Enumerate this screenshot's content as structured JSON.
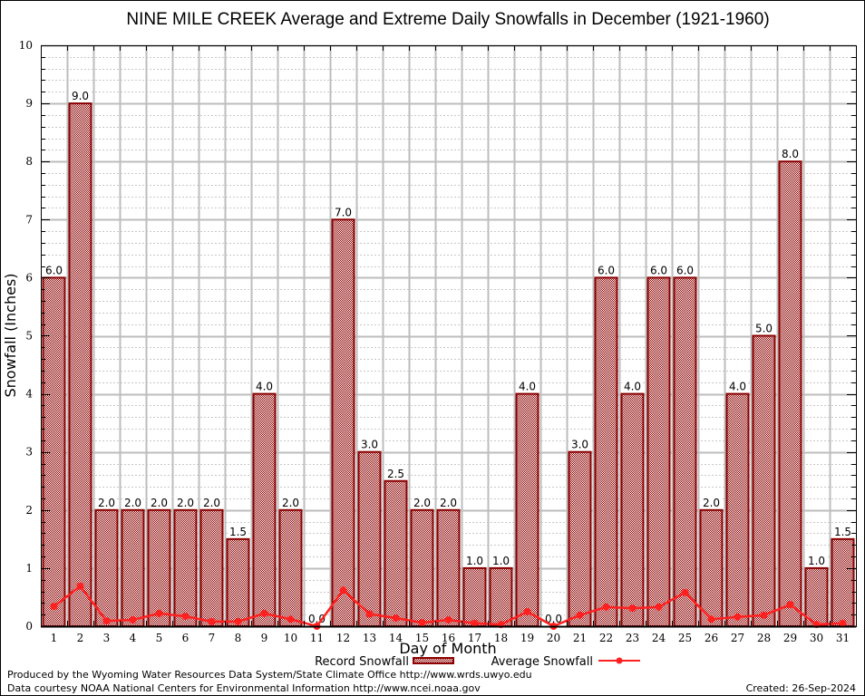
{
  "chart_data": {
    "type": "bar",
    "title": "NINE MILE CREEK Average and Extreme Daily Snowfalls in December (1921-1960)",
    "xlabel": "Day of Month",
    "ylabel": "Snowfall (Inches)",
    "ylim": [
      0,
      10
    ],
    "yticks": [
      "0",
      "1",
      "2",
      "3",
      "4",
      "5",
      "6",
      "7",
      "8",
      "9",
      "10"
    ],
    "grid": true,
    "categories": [
      "1",
      "2",
      "3",
      "4",
      "5",
      "6",
      "7",
      "8",
      "9",
      "10",
      "11",
      "12",
      "13",
      "14",
      "15",
      "16",
      "17",
      "18",
      "19",
      "20",
      "21",
      "22",
      "23",
      "24",
      "25",
      "26",
      "27",
      "28",
      "29",
      "30",
      "31"
    ],
    "series": [
      {
        "name": "Record Snowfall",
        "kind": "bar",
        "color": "#8b0000",
        "values": [
          6.0,
          9.0,
          2.0,
          2.0,
          2.0,
          2.0,
          2.0,
          1.5,
          4.0,
          2.0,
          0.0,
          7.0,
          3.0,
          2.5,
          2.0,
          2.0,
          1.0,
          1.0,
          4.0,
          0.0,
          3.0,
          6.0,
          4.0,
          6.0,
          6.0,
          2.0,
          4.0,
          5.0,
          8.0,
          1.0,
          1.5
        ],
        "labels": [
          "6.0",
          "9.0",
          "2.0",
          "2.0",
          "2.0",
          "2.0",
          "2.0",
          "1.5",
          "4.0",
          "2.0",
          "0.0",
          "7.0",
          "3.0",
          "2.5",
          "2.0",
          "2.0",
          "1.0",
          "1.0",
          "4.0",
          "0.0",
          "3.0",
          "6.0",
          "4.0",
          "6.0",
          "6.0",
          "2.0",
          "4.0",
          "5.0",
          "8.0",
          "1.0",
          "1.5"
        ]
      },
      {
        "name": "Average Snowfall",
        "kind": "line",
        "color": "#ff2020",
        "values": [
          0.34,
          0.69,
          0.09,
          0.11,
          0.22,
          0.17,
          0.08,
          0.08,
          0.22,
          0.12,
          0.0,
          0.62,
          0.21,
          0.14,
          0.06,
          0.11,
          0.05,
          0.03,
          0.25,
          0.0,
          0.19,
          0.33,
          0.31,
          0.33,
          0.58,
          0.12,
          0.16,
          0.19,
          0.37,
          0.03,
          0.05
        ]
      }
    ],
    "legend": {
      "placement": "bottom-center",
      "entries": [
        "Record Snowfall",
        "Average Snowfall"
      ]
    }
  },
  "footer": {
    "produced_by": "Produced by the Wyoming Water Resources Data System/State Climate Office http://www.wrds.uwyo.edu",
    "data_courtesy": "Data courtesy NOAA National Centers for Environmental Information http://www.ncei.noaa.gov",
    "created": "Created: 26-Sep-2024"
  }
}
